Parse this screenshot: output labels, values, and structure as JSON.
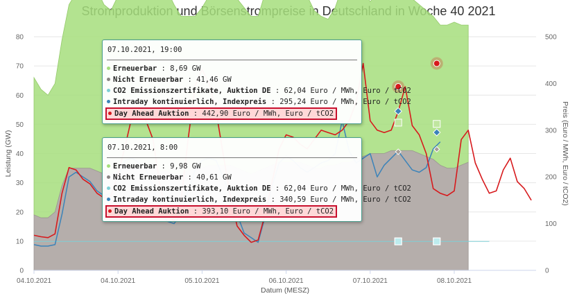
{
  "title": "Stromproduktion und Börsenstrompreise in Deutschland in Woche 40 2021",
  "chart_data": {
    "type": "area",
    "xlabel": "Datum (MESZ)",
    "ylabel_left": "Leistung (GW)",
    "ylabel_right": "Preis (Euro / MWh, Euro / tCO2)",
    "yleft_lim": [
      0,
      80
    ],
    "yright_lim": [
      0,
      500
    ],
    "yleft_ticks": [
      "0",
      "10",
      "20",
      "30",
      "40",
      "50",
      "60",
      "70",
      "80"
    ],
    "yright_ticks": [
      "0",
      "100",
      "200",
      "300",
      "400",
      "500"
    ],
    "x_tick_labels": [
      "04.10.2021",
      "04.10.2021",
      "05.10.2021",
      "06.10.2021",
      "07.10.2021",
      "08.10.2021"
    ],
    "x_tick_hours": [
      0,
      24,
      48,
      72,
      96,
      120
    ],
    "grid": true,
    "series": [
      {
        "name": "Erneuerbar",
        "axis": "left",
        "color": "#a6de7d",
        "x": [
          0,
          2,
          4,
          6,
          8,
          10,
          12,
          14,
          16,
          18,
          20,
          22,
          24,
          26,
          28,
          30,
          32,
          34,
          36,
          38,
          40,
          42,
          44,
          46,
          48,
          50,
          52,
          54,
          56,
          58,
          60,
          62,
          64,
          66,
          68,
          70,
          72,
          74,
          76,
          78,
          80,
          82,
          84,
          86,
          88,
          90,
          92,
          94,
          96,
          98,
          100,
          102,
          104,
          106,
          108,
          110,
          112,
          114,
          116,
          118,
          120,
          122,
          124
        ],
        "values": [
          47,
          44,
          42,
          44,
          50,
          56,
          60,
          63,
          64,
          62,
          58,
          56,
          60,
          72,
          80,
          80,
          76,
          70,
          66,
          62,
          58,
          54,
          53,
          52,
          55,
          58,
          62,
          64,
          60,
          58,
          56,
          54,
          53,
          60,
          70,
          76,
          78,
          72,
          64,
          58,
          54,
          52,
          50,
          54,
          60,
          65,
          60,
          57,
          52,
          55,
          62,
          64,
          62,
          58,
          52,
          51,
          50,
          49,
          48,
          49,
          50,
          48,
          47
        ]
      },
      {
        "name": "Nicht Erneuerbar",
        "axis": "left",
        "color": "#b5aeab",
        "x": [
          0,
          2,
          4,
          6,
          8,
          10,
          12,
          14,
          16,
          18,
          20,
          22,
          24,
          26,
          28,
          30,
          32,
          34,
          36,
          38,
          40,
          42,
          44,
          46,
          48,
          50,
          52,
          54,
          56,
          58,
          60,
          62,
          64,
          66,
          68,
          70,
          72,
          74,
          76,
          78,
          80,
          82,
          84,
          86,
          88,
          90,
          92,
          94,
          96,
          98,
          100,
          102,
          104,
          106,
          108,
          110,
          112,
          114,
          116,
          118,
          120,
          122,
          124
        ],
        "values": [
          19,
          18,
          18,
          20,
          29,
          35,
          35,
          35,
          35,
          34,
          33,
          33,
          34,
          36,
          35,
          35,
          35,
          35,
          34,
          34,
          33,
          33,
          34,
          35,
          35,
          36,
          36,
          36,
          36,
          35,
          34,
          33,
          34,
          35,
          36,
          37,
          37,
          37,
          37,
          36,
          35,
          35,
          36,
          36,
          37,
          37,
          38,
          39,
          40,
          40,
          40,
          41,
          41,
          41,
          41,
          40,
          39,
          38,
          36,
          35,
          35,
          36,
          37
        ]
      },
      {
        "name": "CO2 Emissionszertifikate, Auktion DE",
        "axis": "right",
        "color": "#7ecfd6",
        "x": [
          0,
          48,
          96,
          120,
          130
        ],
        "values": [
          62.04,
          62.04,
          62.04,
          62.04,
          62.04
        ]
      },
      {
        "name": "Intraday kontinuierlich, Indexpreis",
        "axis": "right",
        "color": "#3b83b9",
        "x": [
          0,
          2,
          4,
          6,
          8,
          10,
          12,
          14,
          16,
          18,
          20,
          22,
          24,
          26,
          28,
          30,
          32,
          34,
          36,
          38,
          40,
          42,
          44,
          46,
          48,
          50,
          52,
          54,
          56,
          58,
          60,
          62,
          64,
          66,
          68,
          70,
          72,
          74,
          76,
          78,
          80,
          82,
          84,
          86,
          88,
          90,
          92,
          94,
          96,
          98,
          100,
          102,
          104,
          106,
          108,
          110,
          112,
          114,
          116
        ],
        "values": [
          55,
          52,
          52,
          55,
          120,
          200,
          210,
          200,
          190,
          170,
          160,
          165,
          200,
          235,
          240,
          230,
          215,
          180,
          130,
          105,
          100,
          120,
          170,
          215,
          235,
          240,
          235,
          200,
          160,
          120,
          80,
          70,
          60,
          115,
          180,
          230,
          245,
          235,
          220,
          210,
          220,
          230,
          235,
          250,
          320,
          255,
          230,
          240,
          250,
          200,
          225,
          240,
          255,
          235,
          215,
          210,
          220,
          260,
          275
        ]
      },
      {
        "name": "Day Ahead Auktion",
        "axis": "right",
        "color": "#d7191c",
        "x": [
          0,
          2,
          4,
          6,
          8,
          10,
          12,
          14,
          16,
          18,
          20,
          22,
          24,
          26,
          28,
          30,
          32,
          34,
          36,
          38,
          40,
          42,
          44,
          46,
          48,
          50,
          52,
          54,
          56,
          58,
          60,
          62,
          64,
          66,
          68,
          70,
          72,
          74,
          76,
          78,
          80,
          82,
          84,
          86,
          88,
          90,
          92,
          94,
          96,
          98,
          100,
          102,
          104,
          106,
          108,
          110,
          112,
          114,
          116,
          118,
          120,
          122,
          124,
          126,
          128,
          130,
          132,
          134,
          136,
          138,
          140,
          142
        ],
        "values": [
          75,
          72,
          70,
          78,
          165,
          220,
          215,
          195,
          185,
          165,
          155,
          160,
          205,
          265,
          330,
          340,
          320,
          280,
          180,
          120,
          105,
          150,
          280,
          395,
          430,
          400,
          340,
          250,
          160,
          95,
          75,
          60,
          65,
          120,
          190,
          260,
          290,
          285,
          270,
          260,
          280,
          300,
          295,
          290,
          300,
          320,
          360,
          442.9,
          320,
          300,
          295,
          300,
          340,
          393.1,
          310,
          290,
          250,
          175,
          165,
          160,
          170,
          280,
          300,
          230,
          195,
          165,
          170,
          215,
          240,
          190,
          175,
          150
        ]
      }
    ],
    "tooltips": [
      {
        "datetime": "07.10.2021, 19:00",
        "rows": [
          {
            "name": "Erneuerbar",
            "value": "8,69 GW",
            "color": "#a6de7d"
          },
          {
            "name": "Nicht Erneuerbar",
            "value": "41,46 GW",
            "color": "#8a8584"
          },
          {
            "name": "CO2 Emissionszertifikate, Auktion DE",
            "value": "62,04 Euro / MWh, Euro / tCO2",
            "color": "#7ecfd6"
          },
          {
            "name": "Intraday kontinuierlich, Indexpreis",
            "value": "295,24 Euro / MWh, Euro / tCO2",
            "color": "#3b83b9"
          },
          {
            "name": "Day Ahead Auktion",
            "value": "442,90 Euro / MWh, Euro / tCO2",
            "color": "#d7191c",
            "highlight": true
          }
        ]
      },
      {
        "datetime": "07.10.2021, 8:00",
        "rows": [
          {
            "name": "Erneuerbar",
            "value": "9,98 GW",
            "color": "#a6de7d"
          },
          {
            "name": "Nicht Erneuerbar",
            "value": "40,61 GW",
            "color": "#8a8584"
          },
          {
            "name": "CO2 Emissionszertifikate, Auktion DE",
            "value": "62,04 Euro / MWh, Euro / tCO2",
            "color": "#7ecfd6"
          },
          {
            "name": "Intraday kontinuierlich, Indexpreis",
            "value": "340,59 Euro / MWh, Euro / tCO2",
            "color": "#3b83b9"
          },
          {
            "name": "Day Ahead Auktion",
            "value": "393,10 Euro / MWh, Euro / tCO2",
            "color": "#d7191c",
            "highlight": true
          }
        ]
      }
    ]
  }
}
